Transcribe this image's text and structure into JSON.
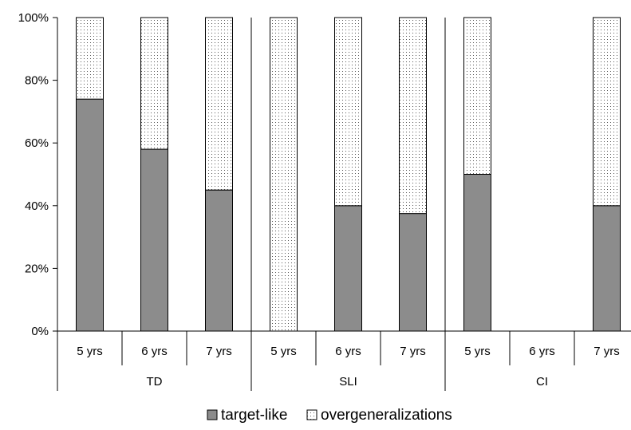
{
  "chart_data": {
    "type": "bar",
    "stacked": true,
    "percent_stacked": true,
    "groups": [
      "TD",
      "SLI",
      "CI"
    ],
    "categories": [
      {
        "group": "TD",
        "label": "5 yrs"
      },
      {
        "group": "TD",
        "label": "6 yrs"
      },
      {
        "group": "TD",
        "label": "7 yrs"
      },
      {
        "group": "SLI",
        "label": "5 yrs"
      },
      {
        "group": "SLI",
        "label": "6 yrs"
      },
      {
        "group": "SLI",
        "label": "7 yrs"
      },
      {
        "group": "CI",
        "label": "5 yrs"
      },
      {
        "group": "CI",
        "label": "6 yrs"
      },
      {
        "group": "CI",
        "label": "7 yrs"
      }
    ],
    "series": [
      {
        "name": "target-like",
        "color": "#8c8c8c",
        "pattern": "solid",
        "values": [
          74,
          58,
          45,
          0,
          40,
          37.5,
          50,
          0,
          40
        ]
      },
      {
        "name": "overgeneralizations",
        "color": "#ffffff",
        "pattern": "dotted",
        "values": [
          26,
          42,
          55,
          100,
          60,
          62.5,
          50,
          0,
          60
        ]
      }
    ],
    "ylim": [
      0,
      100
    ],
    "yticks": [
      "0%",
      "20%",
      "40%",
      "60%",
      "80%",
      "100%"
    ],
    "grid": false,
    "legend_position": "bottom"
  }
}
